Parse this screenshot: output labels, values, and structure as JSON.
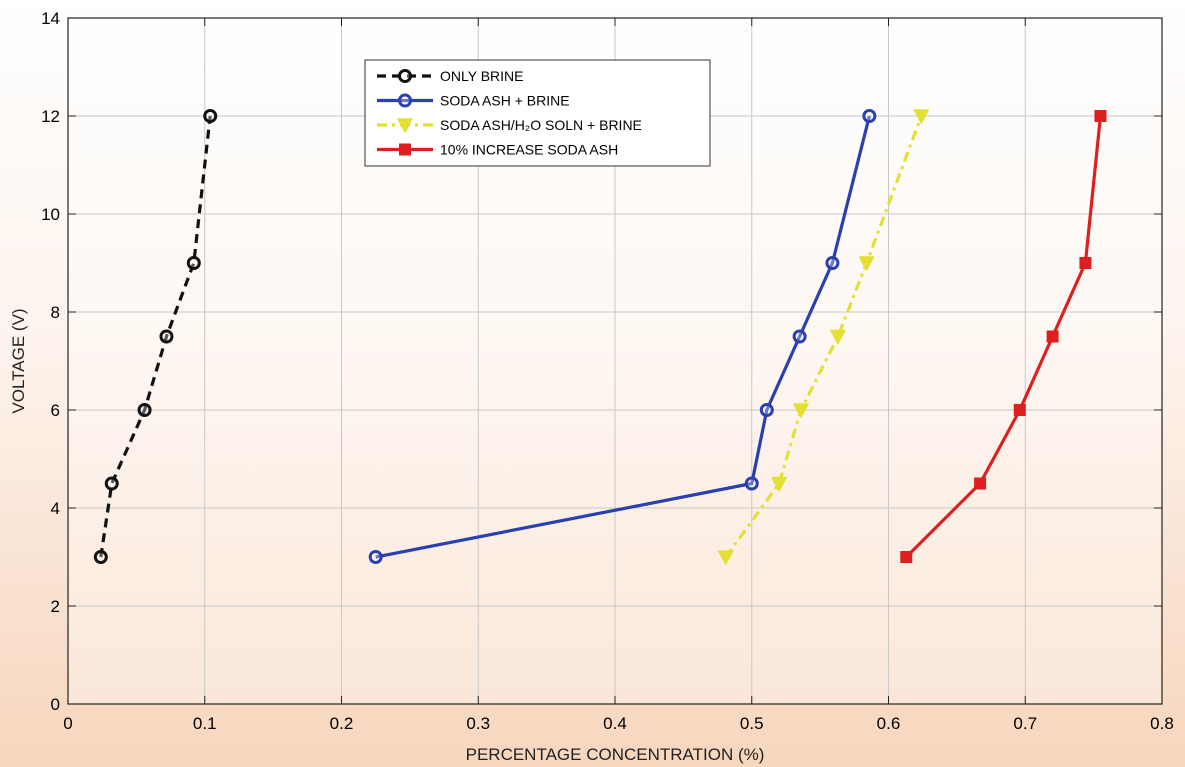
{
  "chart_data": {
    "type": "line",
    "xlabel": "PERCENTAGE  CONCENTRATION (%)",
    "ylabel": "VOLTAGE (V)",
    "xlim": [
      0,
      0.8
    ],
    "ylim": [
      0,
      14
    ],
    "xticks": [
      0,
      0.1,
      0.2,
      0.3,
      0.4,
      0.5,
      0.6,
      0.7,
      0.8
    ],
    "xtick_labels": [
      "0",
      "0.1",
      "0.2",
      "0.3",
      "0.4",
      "0.5",
      "0.6",
      "0.7",
      "0.8"
    ],
    "yticks": [
      0,
      2,
      4,
      6,
      8,
      10,
      12,
      14
    ],
    "ytick_labels": [
      "0",
      "2",
      "4",
      "6",
      "8",
      "10",
      "12",
      "14"
    ],
    "grid": true,
    "legend_position": "top-center",
    "series": [
      {
        "name": "ONLY BRINE",
        "color": "#111111",
        "line_style": "dashed",
        "marker": "circle",
        "x": [
          0.024,
          0.032,
          0.056,
          0.072,
          0.092,
          0.104
        ],
        "y": [
          3,
          4.5,
          6,
          7.5,
          9,
          12
        ]
      },
      {
        "name": "SODA ASH + BRINE",
        "color": "#2a3fb0",
        "line_style": "solid",
        "marker": "circle",
        "x": [
          0.225,
          0.5,
          0.511,
          0.535,
          0.559,
          0.586
        ],
        "y": [
          3,
          4.5,
          6,
          7.5,
          9,
          12
        ]
      },
      {
        "name": "SODA ASH/H₂O SOLN + BRINE",
        "color": "#e3e033",
        "line_style": "dashdot",
        "marker": "triangle-down",
        "x": [
          0.481,
          0.52,
          0.536,
          0.563,
          0.584,
          0.624
        ],
        "y": [
          3,
          4.5,
          6,
          7.5,
          9,
          12
        ]
      },
      {
        "name": "10% INCREASE SODA ASH",
        "color": "#dd1f1f",
        "line_style": "solid",
        "marker": "square",
        "x": [
          0.613,
          0.667,
          0.696,
          0.72,
          0.744,
          0.755
        ],
        "y": [
          3,
          4.5,
          6,
          7.5,
          9,
          12
        ]
      }
    ]
  }
}
